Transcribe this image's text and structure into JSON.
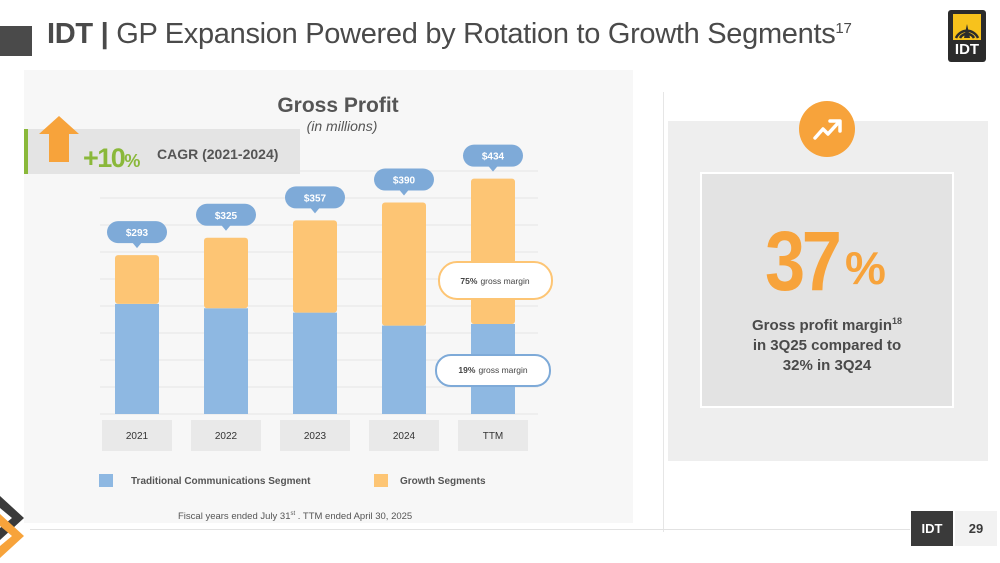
{
  "header": {
    "title_strong": "IDT",
    "title_separator": "|",
    "title_rest": "GP Expansion Powered by Rotation to Growth Segments",
    "title_footnote": "17",
    "logo_text": "IDT"
  },
  "cagr": {
    "value": "+10",
    "percent": "%",
    "label": "CAGR (2021-2024)"
  },
  "chart_data": {
    "type": "bar",
    "stacked": true,
    "title": "Gross Profit",
    "subtitle": "(in millions)",
    "categories": [
      "2021",
      "2022",
      "2023",
      "2024",
      "TTM"
    ],
    "totals": [
      293,
      325,
      357,
      390,
      434
    ],
    "total_labels": [
      "$293",
      "$325",
      "$357",
      "$390",
      "$434"
    ],
    "series": [
      {
        "name": "Traditional Communications Segment",
        "color": "#8eb8e2",
        "values": [
          203,
          195,
          187,
          163,
          166
        ]
      },
      {
        "name": "Growth Segments",
        "color": "#fdc574",
        "values": [
          90,
          130,
          170,
          227,
          268
        ]
      }
    ],
    "ylim": [
      0,
      450
    ],
    "grid": true,
    "annotations": [
      {
        "pct": "75%",
        "text": "gross margin",
        "series": "Growth Segments",
        "category": "TTM"
      },
      {
        "pct": "19%",
        "text": "gross margin",
        "series": "Traditional Communications Segment",
        "category": "TTM"
      }
    ]
  },
  "stat": {
    "value": "37",
    "unit": "%",
    "label_line1": "Gross profit margin",
    "label_sup": "18",
    "label_line2": "in 3Q25 compared to",
    "label_line3": "32% in 3Q24"
  },
  "footer": {
    "note_prefix": "Fiscal years  ended July 31",
    "note_sup": "st",
    "note_suffix": " .  TTM ended April 30, 2025",
    "company": "IDT",
    "page": "29"
  },
  "colors": {
    "accent_orange": "#f7a33b",
    "bar_orange": "#fdc574",
    "bar_blue": "#8eb8e2",
    "bubble_blue": "#7eaad8",
    "cagr_green": "#8ab83a",
    "dark": "#3a3a3a"
  }
}
